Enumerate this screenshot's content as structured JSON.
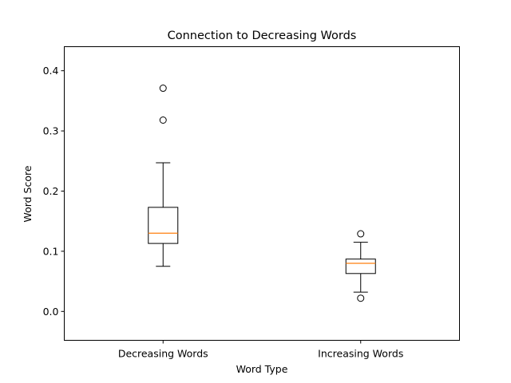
{
  "chart_data": {
    "type": "boxplot",
    "title": "Connection to Decreasing Words",
    "xlabel": "Word Type",
    "ylabel": "Word Score",
    "ylim": [
      -0.048,
      0.44
    ],
    "yticks": [
      0.0,
      0.1,
      0.2,
      0.3,
      0.4
    ],
    "ytick_labels": [
      "0.0",
      "0.1",
      "0.2",
      "0.3",
      "0.4"
    ],
    "grid": false,
    "median_color": "#ff7f0e",
    "categories": [
      "Decreasing Words",
      "Increasing Words"
    ],
    "boxes": [
      {
        "category": "Decreasing Words",
        "whisker_low": 0.075,
        "q1": 0.113,
        "median": 0.13,
        "q3": 0.173,
        "whisker_high": 0.247,
        "fliers": [
          0.318,
          0.371
        ]
      },
      {
        "category": "Increasing Words",
        "whisker_low": 0.032,
        "q1": 0.063,
        "median": 0.08,
        "q3": 0.087,
        "whisker_high": 0.115,
        "fliers": [
          0.022,
          0.129
        ]
      }
    ]
  }
}
